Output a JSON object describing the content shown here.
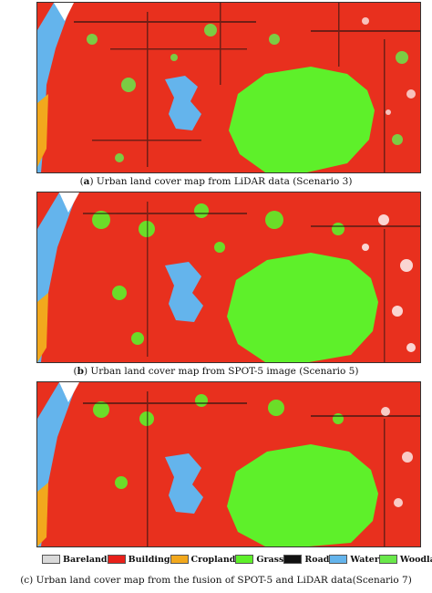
{
  "captions": {
    "a_label": "a",
    "a_text": " Urban land cover map from LiDAR data (Scenario 3)",
    "b_label": "b",
    "b_text": " Urban land cover map from SPOT-5 image (Scenario 5)",
    "c_text": "(c) Urban land cover map from the fusion of SPOT-5 and LiDAR data(Scenario 7)"
  },
  "legend": [
    {
      "label": "Bareland",
      "color": "#d9d9d9"
    },
    {
      "label": "Building",
      "color": "#e8201a"
    },
    {
      "label": "Cropland",
      "color": "#f2a81d"
    },
    {
      "label": "Grass",
      "color": "#5ef02a"
    },
    {
      "label": "Road",
      "color": "#111111"
    },
    {
      "label": "Water",
      "color": "#64b4ec"
    },
    {
      "label": "Woodland",
      "color": "#69e84a"
    }
  ]
}
